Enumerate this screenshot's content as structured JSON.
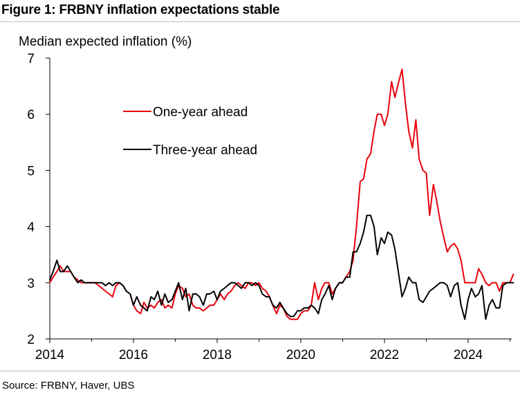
{
  "title": "Figure 1: FRBNY inflation expectations stable",
  "source": "Source: FRBNY, Haver, UBS",
  "chart_data": {
    "type": "line",
    "ylabel": "Median expected inflation (%)",
    "xlabel": "",
    "xlim": [
      2014.0,
      2025.2
    ],
    "ylim": [
      2,
      7
    ],
    "x_ticks": [
      2014,
      2016,
      2018,
      2020,
      2022,
      2024
    ],
    "y_ticks": [
      2,
      3,
      4,
      5,
      6,
      7
    ],
    "grid": false,
    "legend_position": "upper-left inside plot",
    "colors": {
      "one_year": "#e8000b",
      "three_year": "#000000"
    },
    "series": [
      {
        "name": "One-year ahead",
        "color": "#e8000b",
        "points": [
          [
            2014.0,
            3.0
          ],
          [
            2014.08,
            3.1
          ],
          [
            2014.17,
            3.2
          ],
          [
            2014.25,
            3.3
          ],
          [
            2014.33,
            3.2
          ],
          [
            2014.42,
            3.2
          ],
          [
            2014.5,
            3.2
          ],
          [
            2014.58,
            3.1
          ],
          [
            2014.67,
            3.05
          ],
          [
            2014.75,
            3.0
          ],
          [
            2014.83,
            3.0
          ],
          [
            2014.92,
            3.0
          ],
          [
            2015.0,
            3.0
          ],
          [
            2015.08,
            3.0
          ],
          [
            2015.17,
            2.95
          ],
          [
            2015.25,
            2.9
          ],
          [
            2015.33,
            2.85
          ],
          [
            2015.42,
            2.8
          ],
          [
            2015.5,
            2.75
          ],
          [
            2015.58,
            2.95
          ],
          [
            2015.67,
            3.0
          ],
          [
            2015.75,
            2.95
          ],
          [
            2015.83,
            2.85
          ],
          [
            2015.92,
            2.8
          ],
          [
            2016.0,
            2.6
          ],
          [
            2016.08,
            2.5
          ],
          [
            2016.17,
            2.45
          ],
          [
            2016.25,
            2.65
          ],
          [
            2016.33,
            2.55
          ],
          [
            2016.42,
            2.6
          ],
          [
            2016.5,
            2.55
          ],
          [
            2016.58,
            2.65
          ],
          [
            2016.67,
            2.7
          ],
          [
            2016.75,
            2.55
          ],
          [
            2016.83,
            2.6
          ],
          [
            2016.92,
            2.55
          ],
          [
            2017.0,
            2.8
          ],
          [
            2017.08,
            2.95
          ],
          [
            2017.17,
            2.9
          ],
          [
            2017.25,
            2.75
          ],
          [
            2017.33,
            2.8
          ],
          [
            2017.42,
            2.6
          ],
          [
            2017.5,
            2.55
          ],
          [
            2017.58,
            2.55
          ],
          [
            2017.67,
            2.5
          ],
          [
            2017.75,
            2.55
          ],
          [
            2017.83,
            2.6
          ],
          [
            2017.92,
            2.6
          ],
          [
            2018.0,
            2.7
          ],
          [
            2018.08,
            2.8
          ],
          [
            2018.17,
            2.7
          ],
          [
            2018.25,
            2.8
          ],
          [
            2018.33,
            2.85
          ],
          [
            2018.42,
            2.95
          ],
          [
            2018.5,
            3.0
          ],
          [
            2018.58,
            2.95
          ],
          [
            2018.67,
            2.9
          ],
          [
            2018.75,
            3.0
          ],
          [
            2018.83,
            3.0
          ],
          [
            2018.92,
            2.95
          ],
          [
            2019.0,
            3.0
          ],
          [
            2019.08,
            2.9
          ],
          [
            2019.17,
            2.85
          ],
          [
            2019.25,
            2.75
          ],
          [
            2019.33,
            2.6
          ],
          [
            2019.42,
            2.45
          ],
          [
            2019.5,
            2.6
          ],
          [
            2019.58,
            2.55
          ],
          [
            2019.67,
            2.4
          ],
          [
            2019.75,
            2.35
          ],
          [
            2019.83,
            2.35
          ],
          [
            2019.92,
            2.35
          ],
          [
            2020.0,
            2.45
          ],
          [
            2020.08,
            2.5
          ],
          [
            2020.17,
            2.5
          ],
          [
            2020.25,
            2.6
          ],
          [
            2020.33,
            3.0
          ],
          [
            2020.42,
            2.7
          ],
          [
            2020.5,
            2.9
          ],
          [
            2020.58,
            3.0
          ],
          [
            2020.67,
            3.0
          ],
          [
            2020.75,
            2.8
          ],
          [
            2020.83,
            2.9
          ],
          [
            2020.92,
            3.0
          ],
          [
            2021.0,
            3.0
          ],
          [
            2021.08,
            3.1
          ],
          [
            2021.17,
            3.2
          ],
          [
            2021.25,
            3.4
          ],
          [
            2021.33,
            4.0
          ],
          [
            2021.42,
            4.8
          ],
          [
            2021.5,
            4.85
          ],
          [
            2021.58,
            5.2
          ],
          [
            2021.67,
            5.3
          ],
          [
            2021.75,
            5.7
          ],
          [
            2021.83,
            6.0
          ],
          [
            2021.92,
            6.0
          ],
          [
            2022.0,
            5.8
          ],
          [
            2022.08,
            6.0
          ],
          [
            2022.17,
            6.58
          ],
          [
            2022.25,
            6.3
          ],
          [
            2022.33,
            6.55
          ],
          [
            2022.42,
            6.8
          ],
          [
            2022.5,
            6.2
          ],
          [
            2022.58,
            5.7
          ],
          [
            2022.67,
            5.4
          ],
          [
            2022.75,
            5.9
          ],
          [
            2022.83,
            5.2
          ],
          [
            2022.92,
            5.0
          ],
          [
            2023.0,
            4.95
          ],
          [
            2023.08,
            4.2
          ],
          [
            2023.17,
            4.75
          ],
          [
            2023.25,
            4.45
          ],
          [
            2023.33,
            4.1
          ],
          [
            2023.42,
            3.8
          ],
          [
            2023.5,
            3.55
          ],
          [
            2023.58,
            3.65
          ],
          [
            2023.67,
            3.7
          ],
          [
            2023.75,
            3.6
          ],
          [
            2023.83,
            3.4
          ],
          [
            2023.92,
            3.0
          ],
          [
            2024.0,
            3.0
          ],
          [
            2024.08,
            3.0
          ],
          [
            2024.17,
            3.0
          ],
          [
            2024.25,
            3.25
          ],
          [
            2024.33,
            3.15
          ],
          [
            2024.42,
            3.0
          ],
          [
            2024.5,
            2.95
          ],
          [
            2024.58,
            3.0
          ],
          [
            2024.67,
            3.0
          ],
          [
            2024.75,
            2.85
          ],
          [
            2024.83,
            3.0
          ],
          [
            2024.92,
            3.0
          ],
          [
            2025.0,
            3.0
          ],
          [
            2025.08,
            3.15
          ]
        ]
      },
      {
        "name": "Three-year ahead",
        "color": "#000000",
        "points": [
          [
            2014.0,
            3.05
          ],
          [
            2014.08,
            3.2
          ],
          [
            2014.17,
            3.4
          ],
          [
            2014.25,
            3.2
          ],
          [
            2014.33,
            3.2
          ],
          [
            2014.42,
            3.3
          ],
          [
            2014.5,
            3.2
          ],
          [
            2014.58,
            3.1
          ],
          [
            2014.67,
            3.0
          ],
          [
            2014.75,
            3.05
          ],
          [
            2014.83,
            3.0
          ],
          [
            2014.92,
            3.0
          ],
          [
            2015.0,
            3.0
          ],
          [
            2015.08,
            3.0
          ],
          [
            2015.17,
            3.0
          ],
          [
            2015.25,
            3.0
          ],
          [
            2015.33,
            2.95
          ],
          [
            2015.42,
            3.0
          ],
          [
            2015.5,
            2.95
          ],
          [
            2015.58,
            3.0
          ],
          [
            2015.67,
            3.0
          ],
          [
            2015.75,
            2.95
          ],
          [
            2015.83,
            2.85
          ],
          [
            2015.92,
            2.8
          ],
          [
            2016.0,
            2.6
          ],
          [
            2016.08,
            2.75
          ],
          [
            2016.17,
            2.6
          ],
          [
            2016.25,
            2.55
          ],
          [
            2016.33,
            2.5
          ],
          [
            2016.42,
            2.75
          ],
          [
            2016.5,
            2.7
          ],
          [
            2016.58,
            2.85
          ],
          [
            2016.67,
            2.6
          ],
          [
            2016.75,
            2.8
          ],
          [
            2016.83,
            2.65
          ],
          [
            2016.92,
            2.7
          ],
          [
            2017.0,
            2.85
          ],
          [
            2017.08,
            3.0
          ],
          [
            2017.17,
            2.7
          ],
          [
            2017.25,
            2.9
          ],
          [
            2017.33,
            2.5
          ],
          [
            2017.42,
            2.8
          ],
          [
            2017.5,
            2.8
          ],
          [
            2017.58,
            2.75
          ],
          [
            2017.67,
            2.6
          ],
          [
            2017.75,
            2.8
          ],
          [
            2017.83,
            2.8
          ],
          [
            2017.92,
            2.85
          ],
          [
            2018.0,
            2.7
          ],
          [
            2018.08,
            2.85
          ],
          [
            2018.17,
            2.9
          ],
          [
            2018.25,
            2.95
          ],
          [
            2018.33,
            3.0
          ],
          [
            2018.42,
            3.0
          ],
          [
            2018.5,
            2.95
          ],
          [
            2018.58,
            2.9
          ],
          [
            2018.67,
            3.0
          ],
          [
            2018.75,
            3.0
          ],
          [
            2018.83,
            2.95
          ],
          [
            2018.92,
            3.0
          ],
          [
            2019.0,
            2.95
          ],
          [
            2019.08,
            2.8
          ],
          [
            2019.17,
            2.75
          ],
          [
            2019.25,
            2.75
          ],
          [
            2019.33,
            2.6
          ],
          [
            2019.42,
            2.55
          ],
          [
            2019.5,
            2.65
          ],
          [
            2019.58,
            2.55
          ],
          [
            2019.67,
            2.45
          ],
          [
            2019.75,
            2.4
          ],
          [
            2019.83,
            2.4
          ],
          [
            2019.92,
            2.5
          ],
          [
            2020.0,
            2.5
          ],
          [
            2020.08,
            2.55
          ],
          [
            2020.17,
            2.55
          ],
          [
            2020.25,
            2.6
          ],
          [
            2020.33,
            2.55
          ],
          [
            2020.42,
            2.45
          ],
          [
            2020.5,
            2.7
          ],
          [
            2020.58,
            2.8
          ],
          [
            2020.67,
            2.95
          ],
          [
            2020.75,
            2.7
          ],
          [
            2020.83,
            2.9
          ],
          [
            2020.92,
            3.0
          ],
          [
            2021.0,
            3.0
          ],
          [
            2021.08,
            3.1
          ],
          [
            2021.17,
            3.1
          ],
          [
            2021.25,
            3.55
          ],
          [
            2021.33,
            3.55
          ],
          [
            2021.42,
            3.7
          ],
          [
            2021.5,
            3.9
          ],
          [
            2021.58,
            4.2
          ],
          [
            2021.67,
            4.2
          ],
          [
            2021.75,
            4.0
          ],
          [
            2021.83,
            3.5
          ],
          [
            2021.92,
            3.8
          ],
          [
            2022.0,
            3.7
          ],
          [
            2022.08,
            3.9
          ],
          [
            2022.17,
            3.85
          ],
          [
            2022.25,
            3.6
          ],
          [
            2022.33,
            3.2
          ],
          [
            2022.42,
            2.75
          ],
          [
            2022.5,
            2.9
          ],
          [
            2022.58,
            3.1
          ],
          [
            2022.67,
            3.0
          ],
          [
            2022.75,
            3.0
          ],
          [
            2022.83,
            2.7
          ],
          [
            2022.92,
            2.65
          ],
          [
            2023.0,
            2.75
          ],
          [
            2023.08,
            2.85
          ],
          [
            2023.17,
            2.9
          ],
          [
            2023.25,
            2.95
          ],
          [
            2023.33,
            3.0
          ],
          [
            2023.42,
            3.0
          ],
          [
            2023.5,
            2.95
          ],
          [
            2023.58,
            2.75
          ],
          [
            2023.67,
            2.95
          ],
          [
            2023.75,
            3.0
          ],
          [
            2023.83,
            2.6
          ],
          [
            2023.92,
            2.35
          ],
          [
            2024.0,
            2.7
          ],
          [
            2024.08,
            2.9
          ],
          [
            2024.17,
            2.75
          ],
          [
            2024.25,
            2.8
          ],
          [
            2024.33,
            2.95
          ],
          [
            2024.42,
            2.35
          ],
          [
            2024.5,
            2.6
          ],
          [
            2024.58,
            2.7
          ],
          [
            2024.67,
            2.55
          ],
          [
            2024.75,
            2.55
          ],
          [
            2024.83,
            2.95
          ],
          [
            2024.92,
            3.0
          ],
          [
            2025.0,
            3.0
          ],
          [
            2025.08,
            3.0
          ]
        ]
      }
    ]
  }
}
